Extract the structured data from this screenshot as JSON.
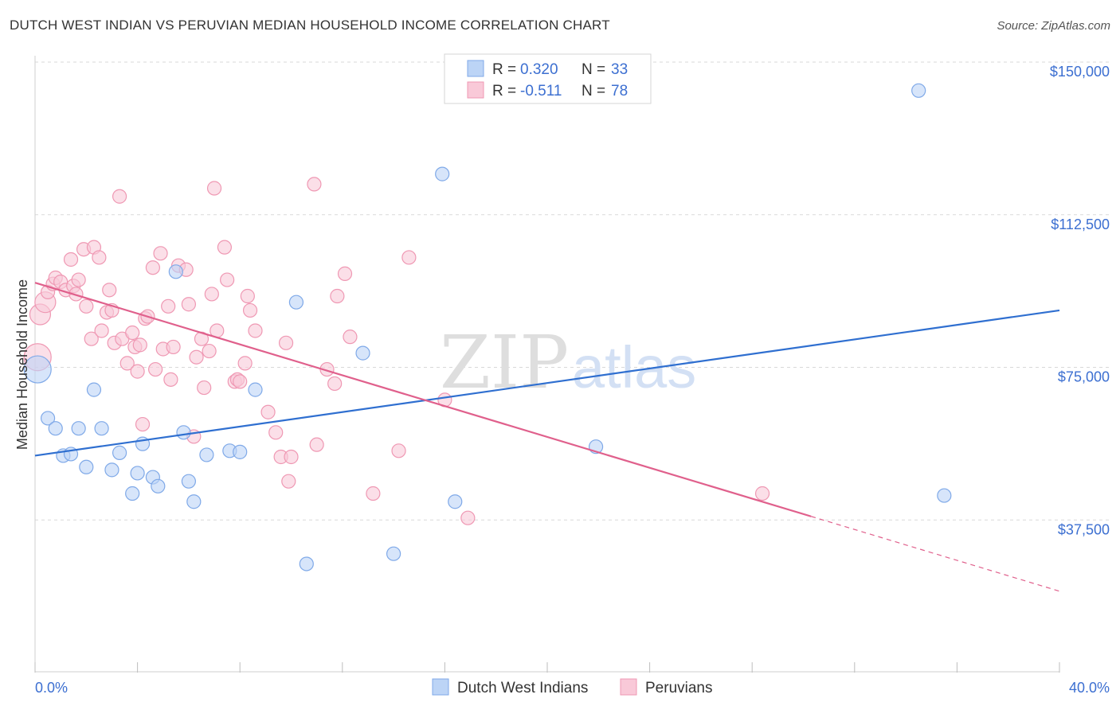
{
  "title": "DUTCH WEST INDIAN VS PERUVIAN MEDIAN HOUSEHOLD INCOME CORRELATION CHART",
  "source": "Source: ZipAtlas.com",
  "watermark": {
    "zip": "ZIP",
    "atlas": "atlas"
  },
  "colors": {
    "blue_fill": "#bcd4f6",
    "blue_stroke": "#7fa9e8",
    "blue_line": "#2f6fd0",
    "pink_fill": "#f9c9d8",
    "pink_stroke": "#ef98b3",
    "pink_line": "#e0608c",
    "tick_text": "#3c6fd1",
    "grid": "#d9d9d9"
  },
  "legend": {
    "rows": [
      {
        "r_label": "R =",
        "r_value": "0.320",
        "n_label": "N =",
        "n_value": "33",
        "series": "blue"
      },
      {
        "r_label": "R =",
        "r_value": "-0.511",
        "n_label": "N =",
        "n_value": "78",
        "series": "pink"
      }
    ]
  },
  "bottom_legend": [
    "Dutch West Indians",
    "Peruvians"
  ],
  "chart_data": {
    "type": "scatter",
    "title": "DUTCH WEST INDIAN VS PERUVIAN MEDIAN HOUSEHOLD INCOME CORRELATION CHART",
    "xlabel": "",
    "ylabel": "Median Household Income",
    "xlim": [
      0,
      40
    ],
    "ylim": [
      0,
      150000
    ],
    "x_tick_labels": [
      "0.0%",
      "40.0%"
    ],
    "y_ticks": [
      37500,
      75000,
      112500,
      150000
    ],
    "y_tick_labels": [
      "$37,500",
      "$75,000",
      "$112,500",
      "$150,000"
    ],
    "grid": true,
    "series": [
      {
        "name": "Dutch West Indians",
        "color": "blue",
        "trend": {
          "x": [
            0,
            40
          ],
          "y": [
            53300,
            89000
          ],
          "dashed_from_x": null
        },
        "points": [
          [
            0.1,
            74500
          ],
          [
            0.5,
            62500
          ],
          [
            0.8,
            60000
          ],
          [
            1.1,
            53300
          ],
          [
            1.4,
            53700
          ],
          [
            1.7,
            60000
          ],
          [
            2.0,
            50500
          ],
          [
            2.3,
            69500
          ],
          [
            2.6,
            60000
          ],
          [
            3.0,
            49800
          ],
          [
            3.3,
            54000
          ],
          [
            3.8,
            44000
          ],
          [
            4.0,
            49000
          ],
          [
            4.2,
            56200
          ],
          [
            4.6,
            48000
          ],
          [
            4.8,
            45800
          ],
          [
            5.5,
            98500
          ],
          [
            5.8,
            59000
          ],
          [
            6.0,
            47000
          ],
          [
            6.2,
            42000
          ],
          [
            6.7,
            53500
          ],
          [
            7.6,
            54500
          ],
          [
            8.0,
            54200
          ],
          [
            8.6,
            69500
          ],
          [
            10.2,
            91000
          ],
          [
            10.6,
            26700
          ],
          [
            12.8,
            78500
          ],
          [
            14.0,
            29200
          ],
          [
            15.9,
            122500
          ],
          [
            16.4,
            42000
          ],
          [
            21.9,
            55500
          ],
          [
            34.5,
            143000
          ],
          [
            35.5,
            43500
          ]
        ]
      },
      {
        "name": "Peruvians",
        "color": "pink",
        "trend": {
          "x": [
            0,
            40
          ],
          "y": [
            95800,
            20000
          ],
          "dashed_from_x": 30.3
        },
        "points": [
          [
            0.1,
            77500
          ],
          [
            0.2,
            88000
          ],
          [
            0.4,
            91000
          ],
          [
            0.5,
            93500
          ],
          [
            0.7,
            95500
          ],
          [
            0.8,
            97000
          ],
          [
            1.0,
            96000
          ],
          [
            1.2,
            94000
          ],
          [
            1.4,
            101500
          ],
          [
            1.5,
            95000
          ],
          [
            1.6,
            93000
          ],
          [
            1.7,
            96500
          ],
          [
            1.9,
            104000
          ],
          [
            2.0,
            90000
          ],
          [
            2.2,
            82000
          ],
          [
            2.3,
            104500
          ],
          [
            2.5,
            102000
          ],
          [
            2.6,
            84000
          ],
          [
            2.8,
            88500
          ],
          [
            2.9,
            94000
          ],
          [
            3.0,
            89000
          ],
          [
            3.1,
            81000
          ],
          [
            3.3,
            117000
          ],
          [
            3.4,
            82000
          ],
          [
            3.6,
            76000
          ],
          [
            3.8,
            83500
          ],
          [
            3.9,
            80000
          ],
          [
            4.0,
            74000
          ],
          [
            4.1,
            80500
          ],
          [
            4.2,
            61000
          ],
          [
            4.3,
            87000
          ],
          [
            4.4,
            87500
          ],
          [
            4.6,
            99500
          ],
          [
            4.7,
            74500
          ],
          [
            4.9,
            103000
          ],
          [
            5.0,
            79500
          ],
          [
            5.2,
            90000
          ],
          [
            5.3,
            72000
          ],
          [
            5.4,
            80000
          ],
          [
            5.6,
            100000
          ],
          [
            5.9,
            99000
          ],
          [
            6.0,
            90500
          ],
          [
            6.2,
            58000
          ],
          [
            6.3,
            77500
          ],
          [
            6.5,
            82000
          ],
          [
            6.6,
            70000
          ],
          [
            6.8,
            79000
          ],
          [
            6.9,
            93000
          ],
          [
            7.0,
            119000
          ],
          [
            7.1,
            84000
          ],
          [
            7.4,
            104500
          ],
          [
            7.5,
            96500
          ],
          [
            7.8,
            71500
          ],
          [
            7.9,
            72000
          ],
          [
            8.0,
            71500
          ],
          [
            8.2,
            76000
          ],
          [
            8.3,
            92500
          ],
          [
            8.4,
            89000
          ],
          [
            8.6,
            84000
          ],
          [
            9.1,
            64000
          ],
          [
            9.4,
            59000
          ],
          [
            9.6,
            53000
          ],
          [
            9.8,
            81000
          ],
          [
            9.9,
            47000
          ],
          [
            10.0,
            53000
          ],
          [
            10.9,
            120000
          ],
          [
            11.0,
            56000
          ],
          [
            11.4,
            74500
          ],
          [
            11.7,
            71000
          ],
          [
            11.8,
            92500
          ],
          [
            12.1,
            98000
          ],
          [
            12.3,
            82500
          ],
          [
            13.2,
            44000
          ],
          [
            14.2,
            54500
          ],
          [
            14.6,
            102000
          ],
          [
            16.0,
            67000
          ],
          [
            16.9,
            38000
          ],
          [
            28.4,
            44000
          ]
        ]
      }
    ]
  }
}
